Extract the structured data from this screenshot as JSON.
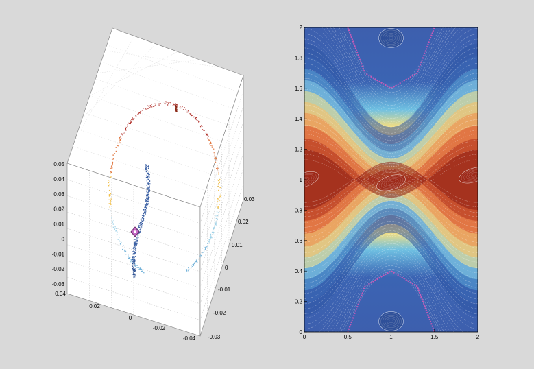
{
  "chart_data": [
    {
      "type": "scatter",
      "projection": "3d",
      "title": "",
      "xlabel": "",
      "ylabel": "",
      "zlabel": "",
      "x_range": [
        -0.04,
        0.04
      ],
      "y_range": [
        -0.03,
        0.03
      ],
      "z_range": [
        -0.03,
        0.05
      ],
      "grid": true,
      "x_ticks": [
        "0.04",
        "0.02",
        "0",
        "-0.02",
        "-0.04"
      ],
      "y_ticks": [
        "-0.03",
        "-0.02",
        "-0.01",
        "0",
        "0.01",
        "0.02",
        "0.03"
      ],
      "z_ticks": [
        "0.05",
        "0.04",
        "0.03",
        "0.02",
        "0.01",
        "0",
        "-0.01",
        "-0.02",
        "-0.03"
      ],
      "series": [
        {
          "description": "scattered points forming an ellipse-like closed orbit, colored by height (red top, yellow sides, light blue bottom)"
        },
        {
          "description": "dense dark-blue streak of points near center"
        }
      ],
      "marker": {
        "x": 0.0,
        "y": 0.0,
        "z": 0.0,
        "shape": "diamond",
        "color": "#b04fb0"
      },
      "colormap": [
        "#b2182b",
        "#ef8a62",
        "#fddb6b",
        "#a6d96a",
        "#67a9cf",
        "#2c5aa0"
      ]
    },
    {
      "type": "scatter",
      "title": "",
      "xlabel": "",
      "ylabel": "",
      "xlim": [
        0,
        2
      ],
      "ylim": [
        0,
        2
      ],
      "grid": false,
      "x_ticks": [
        "0",
        "0.5",
        "1",
        "1.5",
        "2"
      ],
      "y_ticks": [
        "0",
        "0.2",
        "0.4",
        "0.6",
        "0.8",
        "1",
        "1.2",
        "1.4",
        "1.6",
        "1.8",
        "2"
      ],
      "description": "Poincare-section style phase portrait: dense colored orbits, blue near y=0 and y=2, red band near y=1 following a sinusoidal separatrix, with island chains",
      "separatrix": {
        "center_y": 1.0,
        "amplitude": 0.25,
        "period_x": 2
      },
      "islands": [
        {
          "x": 0.0,
          "y": 1.0
        },
        {
          "x": 1.0,
          "y": 0.98
        },
        {
          "x": 1.95,
          "y": 1.03
        },
        {
          "x": 1.0,
          "y": 1.93
        },
        {
          "x": 1.0,
          "y": 0.07
        }
      ],
      "magenta_curves": [
        {
          "x": [
            0.5,
            0.7,
            1.0,
            1.3,
            1.5
          ],
          "y": [
            2.0,
            1.7,
            1.6,
            1.7,
            2.0
          ]
        },
        {
          "x": [
            0.5,
            0.7,
            1.0,
            1.3,
            1.5
          ],
          "y": [
            0.0,
            0.3,
            0.4,
            0.3,
            0.0
          ]
        }
      ],
      "colormap": [
        "#3b5ba9",
        "#6fb9e0",
        "#fee08b",
        "#fdae61",
        "#d9472a",
        "#8b1a12"
      ]
    }
  ]
}
